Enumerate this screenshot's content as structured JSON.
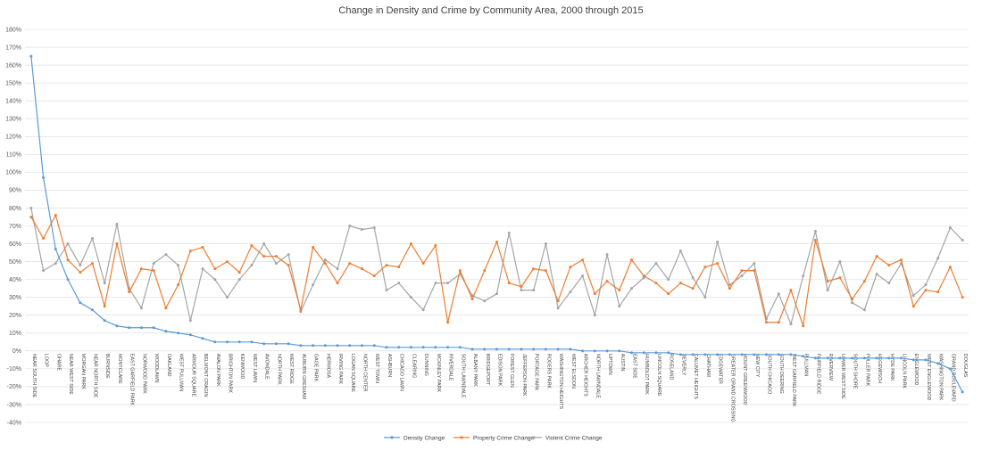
{
  "chart_data": {
    "type": "line",
    "title": "Change in Density and Crime by Community  Area, 2000 through 2015",
    "xlabel": "",
    "ylabel": "",
    "ylim": [
      -40,
      180
    ],
    "ytick_step": 10,
    "ytick_labels": [
      "-40%",
      "-30%",
      "-20%",
      "-10%",
      "0%",
      "10%",
      "20%",
      "30%",
      "40%",
      "50%",
      "60%",
      "70%",
      "80%",
      "90%",
      "100%",
      "110%",
      "120%",
      "130%",
      "140%",
      "150%",
      "160%",
      "170%",
      "180%"
    ],
    "grid": true,
    "legend_position": "bottom",
    "categories": [
      "NEAR SOUTH SIDE",
      "LOOP",
      "OHARE",
      "NEAR WEST SIDE",
      "MORGAN PARK",
      "NEAR NORTH SIDE",
      "BURNSIDE",
      "MONTCLARE",
      "EAST GARFIELD PARK",
      "NORWOOD PARK",
      "WOODLAWN",
      "OAKLAND",
      "WEST PULLMAN",
      "ARMOUR SQUARE",
      "BELMONT CRAGIN",
      "AVALON PARK",
      "BRIGHTON PARK",
      "KENWOOD",
      "WEST LAWN",
      "AVONDALE",
      "NORTH PARK",
      "WEST RIDGE",
      "AUBURN GRESHAM",
      "GAGE PARK",
      "HERMOSA",
      "IRVING PARK",
      "LOGAN SQUARE",
      "NORTH CENTER",
      "WEST TOWN",
      "ASHBURN",
      "CHICAGO LAWN",
      "CLEARING",
      "DUNNING",
      "MCKINLEY PARK",
      "RIVERDALE",
      "SOUTH LAWNDALE",
      "ALBANY PARK",
      "BRIDGEPORT",
      "EDISON PARK",
      "FOREST GLEN",
      "JEFFERSON PARK",
      "PORTAGE PARK",
      "ROGERS PARK",
      "WASHINGTON HEIGHTS",
      "WEST ELSDON",
      "ARCHER HEIGHTS",
      "NORTH LAWNDALE",
      "UPTOWN",
      "AUSTIN",
      "EAST SIDE",
      "HUMBOLDT PARK",
      "LINCOLN SQUARE",
      "ROSELAND",
      "BEVERLY",
      "CALUMET HEIGHTS",
      "CHATHAM",
      "EDGEWATER",
      "GREATER GRAND CROSSING",
      "MOUNT GREENWOOD",
      "NEW CITY",
      "SOUTH CHICAGO",
      "SOUTH DEERING",
      "WEST GARFIELD PARK",
      "PULLMAN",
      "FAIRFIELD RIDGE",
      "RIVERVIEW",
      "LOWER WEST SIDE",
      "SOUTH SHORE",
      "FULLER PARK",
      "HEGEWISCH",
      "HYDE PARK",
      "LINCOLN PARK",
      "ENGLEWOOD",
      "WEST ENGLEWOOD",
      "WASHINGTON PARK",
      "GRAND BOULEVARD",
      "DOUGLAS"
    ],
    "series": [
      {
        "name": "Density Change",
        "color": "#5b9bd5",
        "values": [
          165,
          97,
          57,
          40,
          27,
          23,
          17,
          14,
          13,
          13,
          13,
          11,
          10,
          9,
          7,
          5,
          5,
          5,
          5,
          4,
          4,
          4,
          3,
          3,
          3,
          3,
          3,
          3,
          3,
          2,
          2,
          2,
          2,
          2,
          2,
          2,
          1,
          1,
          1,
          1,
          1,
          1,
          1,
          1,
          1,
          0,
          0,
          0,
          0,
          -1,
          -1,
          -1,
          -1,
          -2,
          -2,
          -2,
          -2,
          -2,
          -2,
          -2,
          -2,
          -2,
          -2,
          -3,
          -4,
          -4,
          -4,
          -4,
          -4,
          -4,
          -4,
          -4,
          -5,
          -5,
          -7,
          -10,
          -23
        ]
      },
      {
        "name": "Property Crime Change",
        "color": "#ed7d31",
        "values": [
          75,
          63,
          76,
          51,
          44,
          49,
          25,
          60,
          33,
          46,
          45,
          24,
          37,
          56,
          58,
          46,
          50,
          44,
          59,
          53,
          53,
          48,
          23,
          58,
          49,
          38,
          49,
          46,
          42,
          48,
          47,
          60,
          49,
          59,
          16,
          45,
          29,
          45,
          61,
          38,
          36,
          46,
          45,
          28,
          47,
          51,
          32,
          39,
          34,
          51,
          42,
          38,
          32,
          38,
          35,
          47,
          49,
          35,
          45,
          45,
          16,
          16,
          34,
          14,
          62,
          39,
          41,
          29,
          39,
          53,
          48,
          51,
          25,
          34,
          33,
          47,
          30
        ]
      },
      {
        "name": "Violent Crime Change",
        "color": "#a5a5a5",
        "values": [
          80,
          45,
          49,
          60,
          48,
          63,
          38,
          71,
          35,
          24,
          49,
          54,
          48,
          17,
          46,
          40,
          30,
          40,
          48,
          60,
          49,
          54,
          22,
          37,
          51,
          46,
          70,
          68,
          69,
          34,
          38,
          30,
          23,
          38,
          38,
          43,
          31,
          28,
          32,
          66,
          34,
          34,
          60,
          24,
          33,
          42,
          20,
          54,
          25,
          35,
          41,
          49,
          40,
          56,
          41,
          30,
          61,
          37,
          42,
          49,
          18,
          32,
          15,
          42,
          67,
          34,
          50,
          27,
          23,
          43,
          38,
          49,
          31,
          37,
          52,
          69,
          62
        ]
      }
    ]
  }
}
